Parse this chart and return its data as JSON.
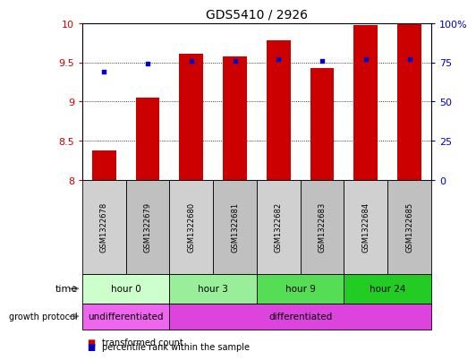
{
  "title": "GDS5410 / 2926",
  "samples": [
    "GSM1322678",
    "GSM1322679",
    "GSM1322680",
    "GSM1322681",
    "GSM1322682",
    "GSM1322683",
    "GSM1322684",
    "GSM1322685"
  ],
  "transformed_count": [
    8.38,
    9.05,
    9.61,
    9.57,
    9.78,
    9.43,
    9.97,
    10.0
  ],
  "percentile_rank": [
    69,
    74,
    76,
    76,
    77,
    76,
    77,
    77
  ],
  "ylim_left": [
    8.0,
    10.0
  ],
  "ylim_right": [
    0,
    100
  ],
  "yticks_left": [
    8.0,
    8.5,
    9.0,
    9.5,
    10.0
  ],
  "yticks_right": [
    0,
    25,
    50,
    75,
    100
  ],
  "ytick_labels_left": [
    "8",
    "8.5",
    "9",
    "9.5",
    "10"
  ],
  "ytick_labels_right": [
    "0",
    "25",
    "50",
    "75",
    "100%"
  ],
  "bar_color": "#cc0000",
  "dot_color": "#0000cc",
  "bar_width": 0.55,
  "time_groups": [
    {
      "label": "hour 0",
      "start": 0,
      "end": 2,
      "color": "#ccffcc"
    },
    {
      "label": "hour 3",
      "start": 2,
      "end": 4,
      "color": "#99ee99"
    },
    {
      "label": "hour 9",
      "start": 4,
      "end": 6,
      "color": "#55dd55"
    },
    {
      "label": "hour 24",
      "start": 6,
      "end": 8,
      "color": "#22cc22"
    }
  ],
  "growth_groups": [
    {
      "label": "undifferentiated",
      "start": 0,
      "end": 2,
      "color": "#ee66ee"
    },
    {
      "label": "differentiated",
      "start": 2,
      "end": 8,
      "color": "#dd44dd"
    }
  ],
  "legend_bar_label": "transformed count",
  "legend_dot_label": "percentile rank within the sample",
  "time_label": "time",
  "growth_label": "growth protocol",
  "bar_color_legend": "#cc0000",
  "dot_color_legend": "#0000cc",
  "tick_color_left": "#cc0000",
  "tick_color_right": "#0000cc",
  "sample_box_color": "#d0d0d0",
  "sample_box_color_alt": "#c0c0c0"
}
